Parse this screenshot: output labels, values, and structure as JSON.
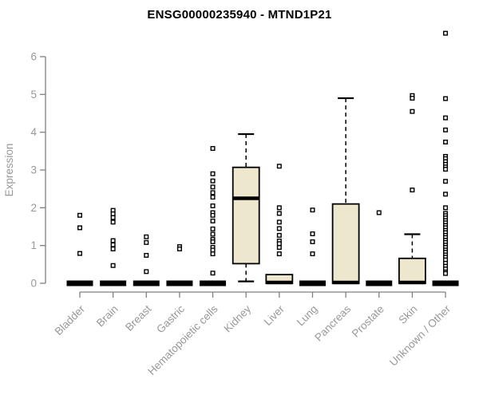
{
  "title": "ENSG00000235940 - MTND1P21",
  "colors": {
    "box_fill": "#EDE7CD",
    "box_stroke": "#000000",
    "median": "#000000",
    "outlier_stroke": "#000000",
    "outlier_fill": "#ffffff",
    "axis_line": "#808080",
    "tick_label": "#989898",
    "title": "#000000",
    "background": "#ffffff"
  },
  "chart_data": {
    "type": "boxplot",
    "title": "ENSG00000235940 - MTND1P21",
    "xlabel": "",
    "ylabel": "Expression",
    "ylim": [
      0,
      6.8
    ],
    "yticks": [
      0,
      1,
      2,
      3,
      4,
      5,
      6
    ],
    "grid": false,
    "legend": false,
    "categories": [
      "Bladder",
      "Brain",
      "Breast",
      "Gastric",
      "Hematopoietic cells",
      "Kidney",
      "Liver",
      "Lung",
      "Pancreas",
      "Prostate",
      "Skin",
      "Unknown / Other"
    ],
    "series": [
      {
        "category": "Bladder",
        "q1": 0,
        "median": 0,
        "q3": 0,
        "whisker_low": 0,
        "whisker_high": 0,
        "outliers": [
          1.8,
          1.47,
          0.79
        ]
      },
      {
        "category": "Brain",
        "q1": 0,
        "median": 0,
        "q3": 0,
        "whisker_low": 0,
        "whisker_high": 0,
        "outliers": [
          1.93,
          1.84,
          1.74,
          1.62,
          1.13,
          1.02,
          0.91,
          0.47
        ]
      },
      {
        "category": "Breast",
        "q1": 0,
        "median": 0,
        "q3": 0,
        "whisker_low": 0,
        "whisker_high": 0,
        "outliers": [
          1.23,
          1.08,
          0.74,
          0.31
        ]
      },
      {
        "category": "Gastric",
        "q1": 0,
        "median": 0,
        "q3": 0,
        "whisker_low": 0,
        "whisker_high": 0,
        "outliers": [
          0.97,
          0.91
        ]
      },
      {
        "category": "Hematopoietic cells",
        "q1": 0,
        "median": 0,
        "q3": 0,
        "whisker_low": 0,
        "whisker_high": 0,
        "outliers": [
          3.57,
          2.9,
          2.71,
          2.55,
          2.4,
          2.28,
          2.05,
          1.87,
          1.8,
          1.65,
          1.44,
          1.3,
          1.16,
          1.1,
          0.95,
          0.88,
          0.78,
          0.27
        ]
      },
      {
        "category": "Kidney",
        "q1": 0.52,
        "median": 2.25,
        "q3": 3.07,
        "whisker_low": 0.05,
        "whisker_high": 3.95,
        "outliers": []
      },
      {
        "category": "Liver",
        "q1": 0,
        "median": 0.02,
        "q3": 0.23,
        "whisker_low": 0,
        "whisker_high": 0.23,
        "outliers": [
          3.1,
          2.0,
          1.85,
          1.62,
          1.45,
          1.27,
          1.12,
          1.05,
          0.95,
          0.78
        ]
      },
      {
        "category": "Lung",
        "q1": 0,
        "median": 0,
        "q3": 0,
        "whisker_low": 0,
        "whisker_high": 0,
        "outliers": [
          1.94,
          1.31,
          1.1,
          0.78
        ]
      },
      {
        "category": "Pancreas",
        "q1": 0,
        "median": 0.02,
        "q3": 2.1,
        "whisker_low": 0,
        "whisker_high": 4.9,
        "outliers": []
      },
      {
        "category": "Prostate",
        "q1": 0,
        "median": 0,
        "q3": 0,
        "whisker_low": 0,
        "whisker_high": 0,
        "outliers": [
          1.87
        ]
      },
      {
        "category": "Skin",
        "q1": 0,
        "median": 0.02,
        "q3": 0.66,
        "whisker_low": 0,
        "whisker_high": 1.3,
        "outliers": [
          4.97,
          4.9,
          4.55,
          2.47
        ]
      },
      {
        "category": "Unknown / Other",
        "q1": 0,
        "median": 0,
        "q3": 0,
        "whisker_low": 0,
        "whisker_high": 0,
        "outliers": [
          6.62,
          4.89,
          4.38,
          4.06,
          3.74,
          3.36,
          3.3,
          3.22,
          3.15,
          3.08,
          3.02,
          2.7,
          2.36,
          2.0,
          1.85,
          1.79,
          1.73,
          1.66,
          1.6,
          1.53,
          1.47,
          1.4,
          1.34,
          1.27,
          1.21,
          1.14,
          1.08,
          1.01,
          0.95,
          0.88,
          0.82,
          0.75,
          0.69,
          0.62,
          0.53,
          0.45,
          0.38,
          0.3,
          0.26
        ]
      }
    ]
  }
}
